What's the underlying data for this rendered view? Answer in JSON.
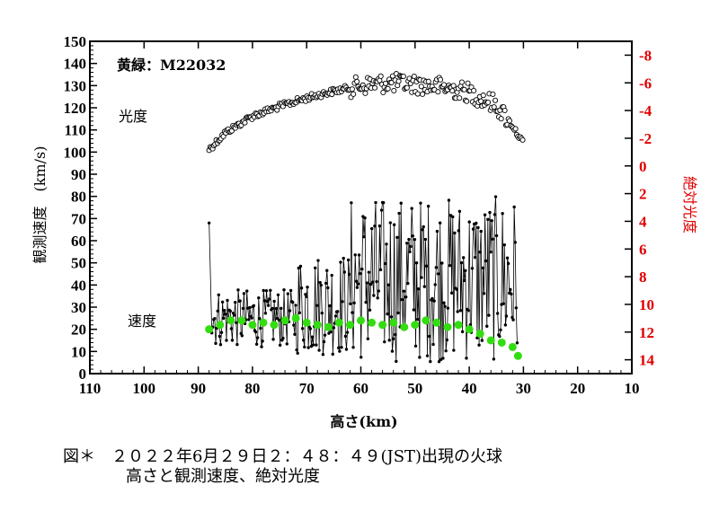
{
  "chart_data": {
    "type": "scatter",
    "title": "黄緑：M22032",
    "xlabel": "高さ(km)",
    "ylabel_left": "観測速度　(km/s)",
    "ylabel_right": "絶対光度",
    "x_range": [
      110,
      10
    ],
    "x_ticks": [
      "110",
      "100",
      "90",
      "80",
      "70",
      "60",
      "50",
      "40",
      "30",
      "20",
      "10"
    ],
    "y_left_range": [
      0,
      150
    ],
    "y_left_ticks": [
      "0",
      "10",
      "20",
      "30",
      "40",
      "50",
      "60",
      "70",
      "80",
      "90",
      "100",
      "110",
      "120",
      "130",
      "140",
      "150"
    ],
    "y_right_range": [
      15,
      -9
    ],
    "y_right_ticks": [
      "-8",
      "-6",
      "-4",
      "-2",
      "0",
      "2",
      "4",
      "6",
      "8",
      "10",
      "12",
      "14"
    ],
    "annotations": {
      "brightness": "光度",
      "velocity": "速度"
    },
    "colors": {
      "axis": "#000000",
      "right_axis": "#e00000",
      "model_speed": "#33dd11",
      "points": "#000000"
    },
    "series": [
      {
        "name": "光度",
        "style": "open-circle",
        "axis": "right",
        "trend_x": [
          88,
          85,
          80,
          75,
          70,
          65,
          60,
          55,
          50,
          45,
          40,
          35,
          32,
          30
        ],
        "trend_mag": [
          -1.2,
          -2.4,
          -3.6,
          -4.3,
          -4.9,
          -5.4,
          -5.8,
          -6.0,
          -5.9,
          -5.7,
          -5.3,
          -4.4,
          -2.9,
          -1.6
        ]
      },
      {
        "name": "観測速度",
        "style": "dot-line",
        "axis": "left",
        "x_start": 88,
        "x_end": 31,
        "first_value": 68,
        "low_segment_range": [
          10,
          40
        ],
        "high_segment_range": [
          5,
          80
        ]
      },
      {
        "name": "速度",
        "style": "green-dot",
        "axis": "left",
        "x": [
          88,
          86,
          84,
          82,
          80,
          78,
          76,
          74,
          72,
          70,
          68,
          66,
          64,
          62,
          60,
          58,
          56,
          54,
          52,
          50,
          48,
          46,
          44,
          42,
          40,
          38,
          36,
          34,
          32,
          31
        ],
        "values": [
          20,
          22,
          24,
          24,
          22,
          23,
          22,
          24,
          25,
          23,
          22,
          21,
          23,
          22,
          24,
          23,
          22,
          23,
          21,
          22,
          24,
          23,
          21,
          22,
          20,
          18,
          15,
          14,
          12,
          8
        ]
      }
    ]
  },
  "caption": {
    "line1": "図＊　２０２２年6月２９日２：４８：４９(JST)出現の火球",
    "line2": "高さと観測速度、絶対光度"
  }
}
